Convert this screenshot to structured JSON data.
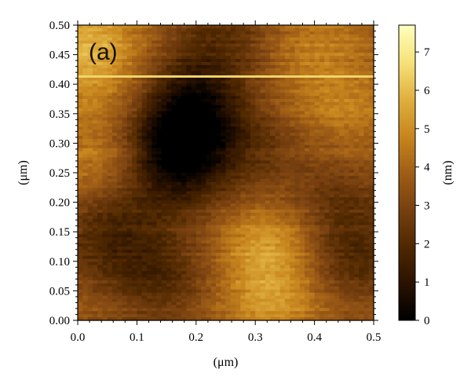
{
  "chart_data": {
    "type": "heatmap",
    "panel_label": "(a)",
    "xlabel": "(μm)",
    "ylabel": "(μm)",
    "colorbar_label": "(nm)",
    "xlim": [
      0.0,
      0.5
    ],
    "ylim": [
      0.0,
      0.5
    ],
    "zlim": [
      0,
      7.7
    ],
    "x_ticks": [
      "0.0",
      "0.1",
      "0.2",
      "0.3",
      "0.4",
      "0.5"
    ],
    "y_ticks": [
      "0.00",
      "0.05",
      "0.10",
      "0.15",
      "0.20",
      "0.25",
      "0.30",
      "0.35",
      "0.40",
      "0.45",
      "0.50"
    ],
    "colorbar_ticks": [
      "0",
      "1",
      "2",
      "3",
      "4",
      "5",
      "6",
      "7"
    ],
    "colormap": [
      "#000000",
      "#2a1200",
      "#4f2800",
      "#784010",
      "#a05e16",
      "#c8861e",
      "#e0b040",
      "#f6e27a",
      "#ffffbe"
    ],
    "grid": false,
    "scan_streak": {
      "y": 0.413,
      "height_nm": 6.5
    },
    "features": [
      {
        "type": "depression",
        "x": 0.18,
        "y": 0.31,
        "height_nm": 0.7
      },
      {
        "type": "depression",
        "x": 0.2,
        "y": 0.38,
        "height_nm": 1.2
      },
      {
        "type": "depression",
        "x": 0.16,
        "y": 0.26,
        "height_nm": 1.2
      },
      {
        "type": "depression",
        "x": 0.05,
        "y": 0.15,
        "height_nm": 1.5
      },
      {
        "type": "depression",
        "x": 0.47,
        "y": 0.11,
        "height_nm": 1.8
      },
      {
        "type": "depression",
        "x": 0.14,
        "y": 0.07,
        "height_nm": 1.8
      },
      {
        "type": "depression",
        "x": 0.25,
        "y": 0.49,
        "height_nm": 2.2
      },
      {
        "type": "depression",
        "x": 0.44,
        "y": 0.22,
        "height_nm": 2.4
      },
      {
        "type": "depression",
        "x": 0.3,
        "y": 0.28,
        "height_nm": 2.4
      },
      {
        "type": "plateau",
        "x": 0.32,
        "y": 0.12,
        "height_nm": 5.6
      },
      {
        "type": "plateau",
        "x": 0.04,
        "y": 0.27,
        "height_nm": 5.0
      },
      {
        "type": "plateau",
        "x": 0.02,
        "y": 0.46,
        "height_nm": 6.2
      },
      {
        "type": "plateau",
        "x": 0.45,
        "y": 0.34,
        "height_nm": 4.8
      },
      {
        "type": "plateau",
        "x": 0.4,
        "y": 0.47,
        "height_nm": 4.7
      },
      {
        "type": "plateau",
        "x": 0.33,
        "y": 0.02,
        "height_nm": 5.0
      }
    ]
  }
}
